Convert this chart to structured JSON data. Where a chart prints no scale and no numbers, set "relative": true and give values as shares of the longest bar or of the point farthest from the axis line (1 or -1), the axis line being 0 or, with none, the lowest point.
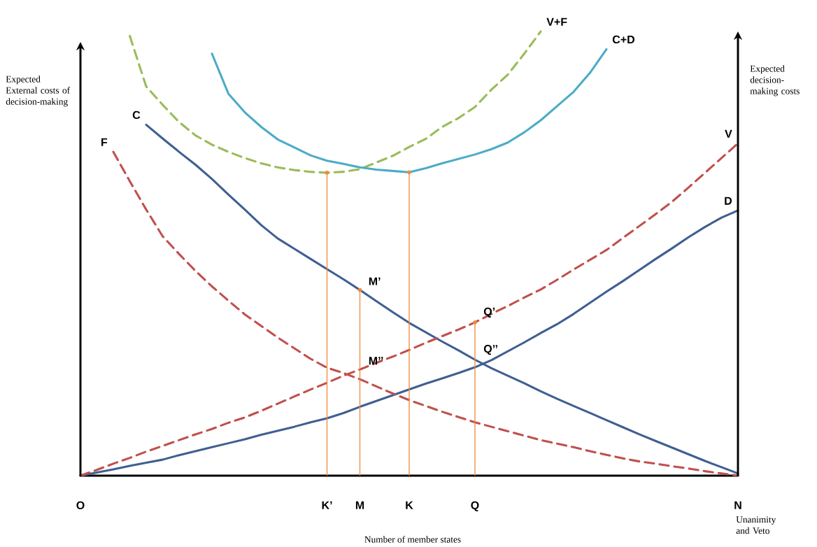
{
  "chart_data": {
    "type": "line",
    "relative": true,
    "xlabel": "Number of member states",
    "ylabel": "Expected External costs of decision-making",
    "y2label": "Expected decision-making costs",
    "categories": [
      "O",
      null,
      null,
      null,
      null,
      null,
      null,
      null,
      null,
      null,
      null,
      null,
      null,
      null,
      null,
      "K’",
      null,
      "M",
      null,
      null,
      "K",
      null,
      null,
      null,
      "Q",
      null,
      null,
      null,
      null,
      null,
      null,
      null,
      null,
      null,
      null,
      null,
      null,
      null,
      null,
      null,
      "N"
    ],
    "series": [
      {
        "name": "C",
        "color": "#3f5f92",
        "line_style": "solid",
        "values": [
          null,
          null,
          null,
          null,
          0.79,
          0.759,
          0.729,
          0.7,
          0.668,
          0.633,
          0.599,
          0.564,
          0.534,
          0.511,
          0.488,
          0.465,
          0.442,
          0.418,
          0.393,
          0.368,
          0.344,
          0.323,
          0.302,
          0.282,
          0.261,
          0.242,
          0.225,
          0.208,
          0.19,
          0.173,
          0.157,
          0.141,
          0.125,
          0.109,
          0.093,
          0.078,
          0.063,
          0.048,
          0.033,
          0.019,
          0.005
        ]
      },
      {
        "name": "D",
        "color": "#3f5f92",
        "line_style": "solid",
        "values": [
          0,
          0.007,
          0.014,
          0.022,
          0.029,
          0.036,
          0.046,
          0.055,
          0.064,
          0.073,
          0.082,
          0.092,
          0.101,
          0.11,
          0.12,
          0.129,
          0.141,
          0.155,
          0.168,
          0.181,
          0.194,
          0.207,
          0.219,
          0.231,
          0.244,
          0.26,
          0.28,
          0.3,
          0.321,
          0.341,
          0.364,
          0.389,
          0.414,
          0.438,
          0.463,
          0.488,
          0.512,
          0.537,
          0.56,
          0.581,
          0.597
        ]
      },
      {
        "name": "F",
        "color": "#c0504d",
        "line_style": "dashed",
        "values": [
          null,
          null,
          0.729,
          0.663,
          0.599,
          0.539,
          0.499,
          0.461,
          0.426,
          0.394,
          0.363,
          0.337,
          0.311,
          0.287,
          0.263,
          0.243,
          0.231,
          0.217,
          0.201,
          0.185,
          0.17,
          0.157,
          0.144,
          0.132,
          0.12,
          0.11,
          0.1,
          0.09,
          0.08,
          0.072,
          0.064,
          0.055,
          0.047,
          0.039,
          0.032,
          0.027,
          0.021,
          0.016,
          0.01,
          0.005,
          0
        ]
      },
      {
        "name": "V",
        "color": "#c0504d",
        "line_style": "dashed",
        "values": [
          0,
          0.013,
          0.027,
          0.04,
          0.054,
          0.067,
          0.08,
          0.093,
          0.105,
          0.119,
          0.131,
          0.146,
          0.162,
          0.178,
          0.194,
          0.209,
          0.225,
          0.239,
          0.254,
          0.268,
          0.283,
          0.299,
          0.314,
          0.329,
          0.345,
          0.364,
          0.382,
          0.401,
          0.419,
          0.441,
          0.464,
          0.486,
          0.508,
          0.535,
          0.562,
          0.589,
          0.617,
          0.649,
          0.682,
          0.715,
          0.748
        ]
      },
      {
        "name": "V+F",
        "color": "#9bbb59",
        "line_style": "dashed",
        "values": [
          null,
          null,
          null,
          0.99,
          0.876,
          0.835,
          0.796,
          0.766,
          0.745,
          0.729,
          0.715,
          0.703,
          0.694,
          0.688,
          0.684,
          0.682,
          0.684,
          0.69,
          0.705,
          0.72,
          0.74,
          0.758,
          0.785,
          0.805,
          0.83,
          0.869,
          0.903,
          0.95,
          1,
          null,
          null,
          null,
          null,
          null,
          null,
          null,
          null,
          null,
          null,
          null,
          null
        ]
      },
      {
        "name": "C+D",
        "color": "#4bacc6",
        "line_style": "solid",
        "values": [
          null,
          null,
          null,
          null,
          null,
          null,
          null,
          null,
          0.95,
          0.86,
          0.818,
          0.785,
          0.757,
          0.739,
          0.721,
          0.709,
          0.702,
          0.694,
          0.689,
          0.686,
          0.683,
          0.692,
          0.703,
          0.713,
          0.723,
          0.735,
          0.75,
          0.773,
          0.8,
          0.832,
          0.864,
          0.907,
          0.96,
          null,
          null,
          null,
          null,
          null,
          null,
          null,
          null
        ]
      },
      {
        "type": "lollipop",
        "color": "#f08a3c",
        "marker": "circle",
        "values": [
          null,
          null,
          null,
          null,
          null,
          null,
          null,
          null,
          null,
          null,
          null,
          null,
          null,
          null,
          null,
          0.682,
          null,
          0.418,
          null,
          null,
          0.683,
          null,
          null,
          null,
          0.345,
          null,
          null,
          null,
          null,
          null,
          null,
          null,
          null,
          null,
          null,
          null,
          null,
          null,
          null,
          null,
          null
        ]
      }
    ],
    "annotations": [
      "Unanimity and Veto",
      {
        "text": "M’",
        "x": "M",
        "y": 0.418
      },
      {
        "text": "M’’",
        "x": "M",
        "y": 0.239
      },
      {
        "text": "Q’",
        "x": "Q",
        "y": 0.345
      },
      {
        "text": "Q’’",
        "x": "Q",
        "y": 0.261
      }
    ]
  }
}
